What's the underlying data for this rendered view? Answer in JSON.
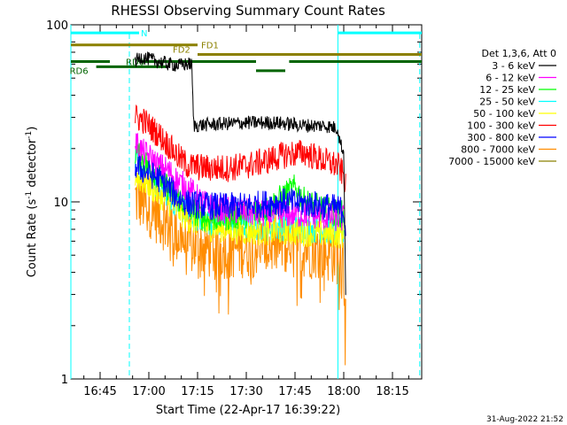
{
  "chart_data": {
    "type": "line",
    "title": "RHESSI Observing Summary Count Rates",
    "xlabel": "Start Time (22-Apr-17 16:39:22)",
    "ylabel_base": "Count Rate (s",
    "ylabel_sup": "-1",
    "ylabel_end": " detector",
    "ylabel_sup2": "-1",
    "ylabel_close": ")",
    "y_scale": "log",
    "ylim": [
      1,
      100
    ],
    "xlim_minutes": [
      16.6,
      18.4
    ],
    "x_ticks": [
      {
        "m": 16.75,
        "label": "16:45"
      },
      {
        "m": 17.0,
        "label": "17:00"
      },
      {
        "m": 17.25,
        "label": "17:15"
      },
      {
        "m": 17.5,
        "label": "17:30"
      },
      {
        "m": 17.75,
        "label": "17:45"
      },
      {
        "m": 18.0,
        "label": "18:00"
      },
      {
        "m": 18.25,
        "label": "18:15"
      }
    ],
    "y_ticks": [
      {
        "v": 1,
        "label": "1"
      },
      {
        "v": 10,
        "label": "10"
      },
      {
        "v": 100,
        "label": "100"
      }
    ],
    "legend_header": "Det 1,3,6, Att 0",
    "legend_position": "top-right",
    "series": [
      {
        "name": "3 - 6 keV",
        "color": "#000000",
        "points": [
          [
            16.93,
            62
          ],
          [
            16.96,
            66
          ],
          [
            17.0,
            64
          ],
          [
            17.05,
            62
          ],
          [
            17.1,
            60
          ],
          [
            17.15,
            59
          ],
          [
            17.2,
            60
          ],
          [
            17.22,
            60
          ],
          [
            17.23,
            27
          ],
          [
            17.35,
            27.5
          ],
          [
            17.5,
            28
          ],
          [
            17.65,
            28
          ],
          [
            17.8,
            27
          ],
          [
            17.9,
            27
          ],
          [
            17.97,
            26
          ],
          [
            17.98,
            22
          ],
          [
            18.0,
            19
          ],
          [
            18.01,
            3.2
          ]
        ]
      },
      {
        "name": "6 - 12 keV",
        "color": "#ff00ff",
        "points": [
          [
            16.93,
            22
          ],
          [
            16.97,
            19
          ],
          [
            17.0,
            18
          ],
          [
            17.05,
            16
          ],
          [
            17.1,
            15
          ],
          [
            17.15,
            13
          ],
          [
            17.2,
            12
          ],
          [
            17.25,
            10.5
          ],
          [
            17.3,
            9.5
          ],
          [
            17.4,
            9
          ],
          [
            17.5,
            8.8
          ],
          [
            17.6,
            8.5
          ],
          [
            17.7,
            8.5
          ],
          [
            17.8,
            8.5
          ],
          [
            17.9,
            8.3
          ],
          [
            18.0,
            8
          ]
        ]
      },
      {
        "name": "12 - 25 keV",
        "color": "#00ff00",
        "points": [
          [
            16.93,
            19
          ],
          [
            16.97,
            17
          ],
          [
            17.0,
            16
          ],
          [
            17.05,
            14
          ],
          [
            17.1,
            12
          ],
          [
            17.15,
            10.5
          ],
          [
            17.2,
            9.5
          ],
          [
            17.25,
            8.5
          ],
          [
            17.3,
            8
          ],
          [
            17.4,
            8.2
          ],
          [
            17.5,
            8.5
          ],
          [
            17.6,
            9
          ],
          [
            17.7,
            11
          ],
          [
            17.75,
            12
          ],
          [
            17.8,
            10
          ],
          [
            17.9,
            9
          ],
          [
            18.0,
            8.5
          ]
        ]
      },
      {
        "name": "25 - 50 keV",
        "color": "#00ffff",
        "points": [
          [
            16.93,
            17
          ],
          [
            16.97,
            15
          ],
          [
            17.0,
            14
          ],
          [
            17.05,
            12
          ],
          [
            17.1,
            11
          ],
          [
            17.15,
            9.5
          ],
          [
            17.2,
            8.5
          ],
          [
            17.3,
            7.8
          ],
          [
            17.4,
            7.5
          ],
          [
            17.5,
            7.3
          ],
          [
            17.6,
            7.2
          ],
          [
            17.7,
            7.2
          ],
          [
            17.8,
            7
          ],
          [
            17.9,
            7
          ],
          [
            18.0,
            6.8
          ]
        ]
      },
      {
        "name": "50 - 100 keV",
        "color": "#ffff00",
        "points": [
          [
            16.93,
            14
          ],
          [
            16.97,
            13
          ],
          [
            17.0,
            12.5
          ],
          [
            17.05,
            11
          ],
          [
            17.1,
            10
          ],
          [
            17.15,
            9
          ],
          [
            17.2,
            8
          ],
          [
            17.3,
            7.2
          ],
          [
            17.4,
            7
          ],
          [
            17.5,
            6.8
          ],
          [
            17.6,
            6.8
          ],
          [
            17.7,
            6.8
          ],
          [
            17.8,
            6.7
          ],
          [
            17.9,
            6.6
          ],
          [
            18.0,
            6.5
          ]
        ]
      },
      {
        "name": "100 - 300 keV",
        "color": "#ff0000",
        "points": [
          [
            16.93,
            30
          ],
          [
            16.97,
            29
          ],
          [
            17.0,
            27
          ],
          [
            17.05,
            24
          ],
          [
            17.1,
            21
          ],
          [
            17.15,
            18
          ],
          [
            17.2,
            16
          ],
          [
            17.3,
            15.5
          ],
          [
            17.4,
            15.5
          ],
          [
            17.5,
            16
          ],
          [
            17.6,
            17
          ],
          [
            17.7,
            18.5
          ],
          [
            17.8,
            19
          ],
          [
            17.9,
            17
          ],
          [
            17.97,
            16
          ],
          [
            18.0,
            14
          ],
          [
            18.01,
            12
          ]
        ]
      },
      {
        "name": "300 - 800 keV",
        "color": "#0000ff",
        "points": [
          [
            16.93,
            16
          ],
          [
            16.97,
            15
          ],
          [
            17.0,
            14.5
          ],
          [
            17.05,
            13.5
          ],
          [
            17.1,
            12
          ],
          [
            17.15,
            10.5
          ],
          [
            17.2,
            9.8
          ],
          [
            17.3,
            9.5
          ],
          [
            17.4,
            9.4
          ],
          [
            17.5,
            9.5
          ],
          [
            17.6,
            9.8
          ],
          [
            17.7,
            10
          ],
          [
            17.8,
            9.8
          ],
          [
            17.9,
            9.5
          ],
          [
            18.0,
            9
          ],
          [
            18.01,
            7
          ]
        ]
      },
      {
        "name": "800 - 7000 keV",
        "color": "#ff8c00",
        "points": [
          [
            16.93,
            10.5
          ],
          [
            16.97,
            10
          ],
          [
            17.0,
            9.5
          ],
          [
            17.05,
            8.5
          ],
          [
            17.1,
            7.5
          ],
          [
            17.15,
            6.5
          ],
          [
            17.2,
            5.8
          ],
          [
            17.3,
            5.5
          ],
          [
            17.4,
            5.5
          ],
          [
            17.5,
            5.6
          ],
          [
            17.6,
            5.7
          ],
          [
            17.7,
            5.8
          ],
          [
            17.8,
            5.6
          ],
          [
            17.9,
            5.3
          ],
          [
            18.0,
            5
          ],
          [
            18.01,
            2.5
          ]
        ]
      },
      {
        "name": "7000 - 15000 keV",
        "color": "#8b8000",
        "points": []
      }
    ],
    "flags": [
      {
        "label": "N",
        "color": "#00ffff",
        "text_color": "#00ffff",
        "y": 90,
        "segments": [
          [
            16.6,
            16.95
          ]
        ]
      },
      {
        "label": "",
        "color": "#00ffff",
        "text_color": "#00ffff",
        "y": 90,
        "segments": [
          [
            17.97,
            18.4
          ]
        ]
      },
      {
        "label": "FD1",
        "color": "#8b8000",
        "text_color": "#8b8000",
        "y": 77,
        "segments": [
          [
            16.6,
            17.25
          ]
        ]
      },
      {
        "label": "FD2",
        "color": "#8b8000",
        "text_color": "#8b8000",
        "y": 68,
        "segments": [
          [
            17.25,
            18.4
          ]
        ]
      },
      {
        "label": "RD6",
        "color": "#006400",
        "text_color": "#006400",
        "y": 58,
        "segments": [
          [
            16.73,
            17.1
          ]
        ]
      },
      {
        "label": "RD6",
        "color": "#006400",
        "text_color": "#006400",
        "y": 62,
        "segments": [
          [
            16.6,
            16.8
          ],
          [
            16.95,
            17.55
          ],
          [
            17.72,
            18.4
          ]
        ]
      },
      {
        "label": "",
        "color": "#006400",
        "text_color": "#006400",
        "y": 55,
        "segments": [
          [
            17.55,
            17.7
          ]
        ]
      }
    ],
    "vlines_solid": [
      16.6,
      17.97
    ],
    "vlines_dashed": [
      16.9,
      18.39
    ],
    "vline_color": "#00ffff",
    "footer_date": "31-Aug-2022 21:52"
  }
}
